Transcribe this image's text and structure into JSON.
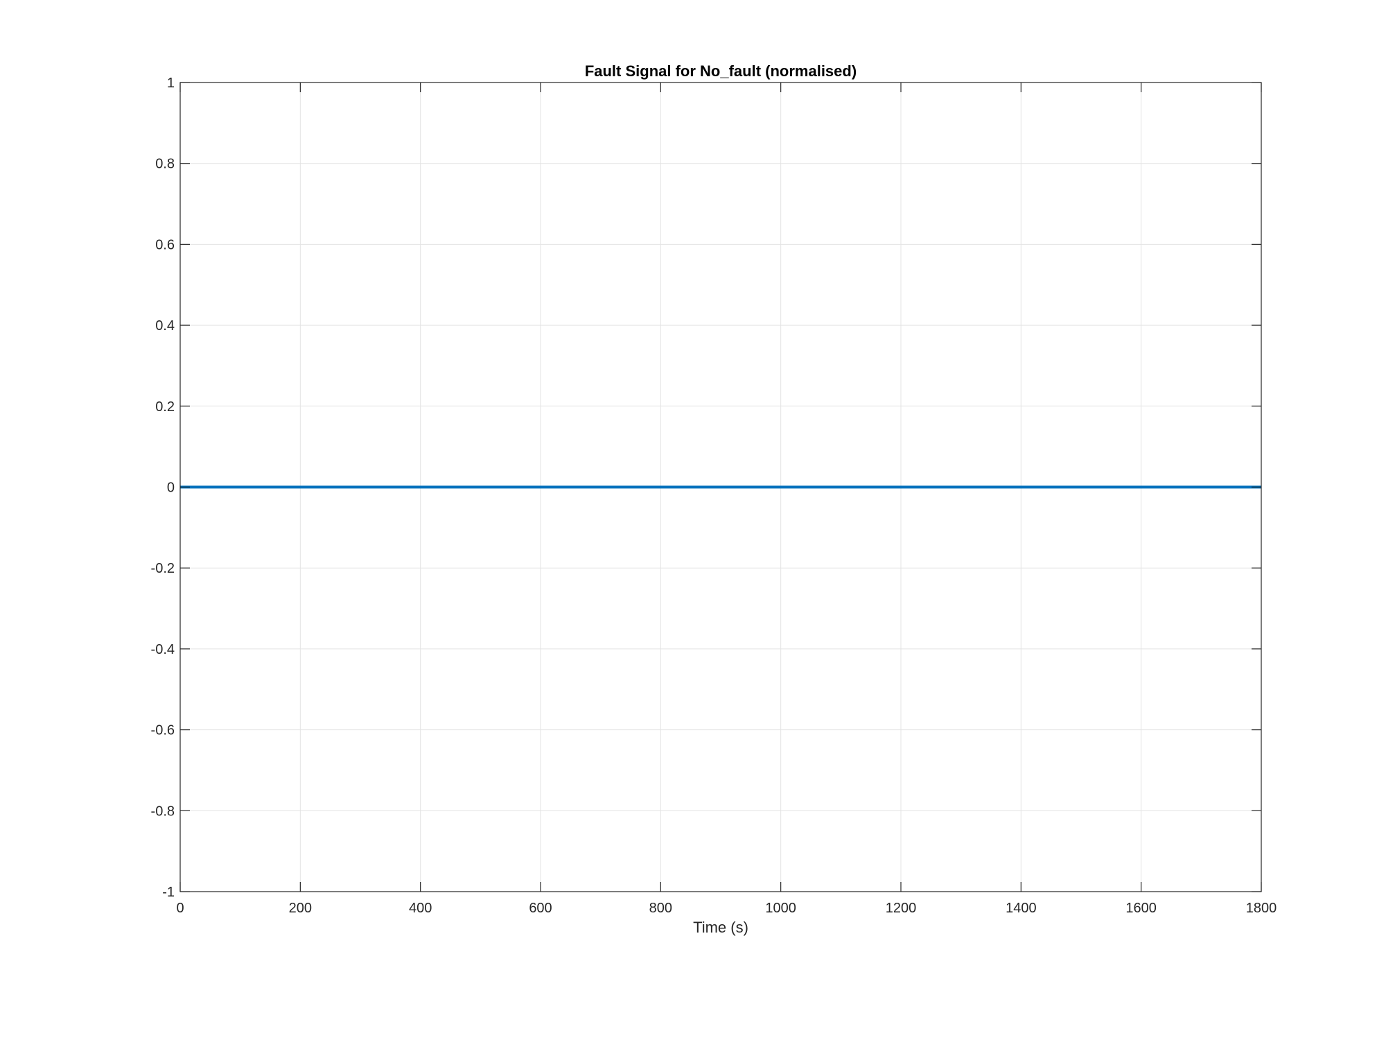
{
  "chart_data": {
    "type": "line",
    "title": "Fault Signal for No_fault (normalised)",
    "xlabel": "Time (s)",
    "ylabel": "",
    "xlim": [
      0,
      1800
    ],
    "ylim": [
      -1,
      1
    ],
    "x_ticks": [
      0,
      200,
      400,
      600,
      800,
      1000,
      1200,
      1400,
      1600,
      1800
    ],
    "y_ticks": [
      -1,
      -0.8,
      -0.6,
      -0.4,
      -0.2,
      0,
      0.2,
      0.4,
      0.6,
      0.8,
      1
    ],
    "x_tick_labels": [
      "0",
      "200",
      "400",
      "600",
      "800",
      "1000",
      "1200",
      "1400",
      "1600",
      "1800"
    ],
    "y_tick_labels": [
      "-1",
      "-0.8",
      "-0.6",
      "-0.4",
      "-0.2",
      "0",
      "0.2",
      "0.4",
      "0.6",
      "0.8",
      "1"
    ],
    "grid": true,
    "series": [
      {
        "x": [
          0,
          1800
        ],
        "values": [
          0,
          0
        ],
        "color": "#0072BD"
      }
    ]
  }
}
